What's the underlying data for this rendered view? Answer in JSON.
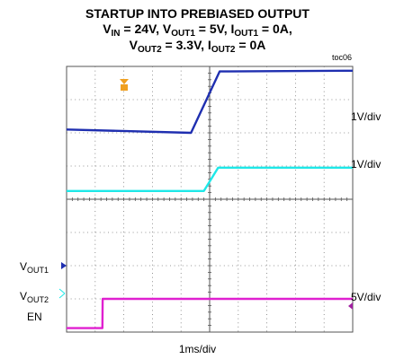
{
  "chart_data": {
    "type": "line",
    "title": {
      "line1": "STARTUP INTO PREBIASED OUTPUT",
      "line2": {
        "v": "V",
        "in_sub": "IN",
        "a": " = 24V, V",
        "out1_sub": "OUT1",
        "b": " = 5V, I",
        "iout1_sub": "OUT1",
        "c": " = 0A,"
      },
      "line3": {
        "v": "V",
        "out2_sub": "OUT2",
        "a": " = 3.3V, I",
        "iout2_sub": "OUT2",
        "b": " = 0A"
      }
    },
    "figure_id": "toc06",
    "xlabel": "1ms/div",
    "x_divisions": 10,
    "y_divisions": 8,
    "series": [
      {
        "name": "VOUT1",
        "label": {
          "main": "V",
          "sub": "OUT1"
        },
        "scale": "1V/div",
        "color": "#1f2fb0",
        "points": [
          [
            0,
            6.1
          ],
          [
            4.35,
            6.0
          ],
          [
            5.35,
            7.85
          ],
          [
            10,
            7.87
          ]
        ]
      },
      {
        "name": "VOUT2",
        "label": {
          "main": "V",
          "sub": "OUT2"
        },
        "scale": "1V/div",
        "color": "#1ee8e8",
        "points": [
          [
            0,
            4.25
          ],
          [
            4.8,
            4.25
          ],
          [
            5.3,
            4.95
          ],
          [
            10,
            4.95
          ]
        ]
      },
      {
        "name": "EN",
        "label": {
          "main": "EN",
          "sub": ""
        },
        "scale": "5V/div",
        "color": "#e020d0",
        "points": [
          [
            0,
            0.12
          ],
          [
            1.25,
            0.12
          ],
          [
            1.26,
            1.0
          ],
          [
            10,
            1.0
          ]
        ]
      }
    ]
  }
}
